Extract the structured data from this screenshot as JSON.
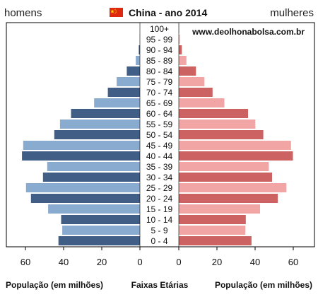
{
  "header": {
    "left_label": "homens",
    "right_label": "mulheres",
    "title": "China - ano 2014",
    "flag_icon": "china-flag-icon",
    "source": "www.deolhonabolsa.com.br"
  },
  "footer": {
    "left_label": "População (em milhões)",
    "center_label": "Faixas Etárias",
    "right_label": "População (em milhões)"
  },
  "chart_data": {
    "type": "bar",
    "orientation": "horizontal",
    "subtype": "population-pyramid",
    "title": "China - ano 2014",
    "categories": [
      "100+",
      "95 - 99",
      "90 - 94",
      "85 - 89",
      "80 - 84",
      "75 - 79",
      "70 - 74",
      "65 - 69",
      "60 - 64",
      "55 - 59",
      "50 - 54",
      "45 - 49",
      "40 - 44",
      "35 - 39",
      "30 - 34",
      "25 - 29",
      "20 - 24",
      "15 - 19",
      "10 - 14",
      "5 - 9",
      "0 - 4"
    ],
    "series": [
      {
        "name": "homens",
        "values": [
          0.0,
          0.1,
          0.6,
          2.2,
          6.9,
          12.2,
          16.8,
          24.0,
          36.1,
          41.9,
          44.9,
          61.2,
          61.8,
          48.6,
          50.8,
          59.7,
          57.1,
          48.1,
          41.3,
          40.7,
          42.7
        ],
        "colors": {
          "light": "#8aabd0",
          "dark": "#415f86"
        }
      },
      {
        "name": "mulheres",
        "values": [
          0.2,
          0.5,
          1.6,
          4.0,
          9.0,
          13.4,
          17.7,
          23.9,
          36.3,
          40.1,
          44.3,
          58.8,
          59.8,
          47.2,
          48.9,
          56.4,
          51.9,
          42.6,
          35.1,
          34.9,
          38.1
        ],
        "colors": {
          "light": "#f2a5a5",
          "dark": "#cc6262"
        }
      }
    ],
    "xlabel_left": "População (em milhões)",
    "xlabel_center": "Faixas Etárias",
    "xlabel_right": "População (em milhões)",
    "xlim": [
      0,
      70
    ],
    "xticks": [
      "60",
      "40",
      "20",
      "0",
      "0",
      "20",
      "40",
      "60"
    ],
    "grid": false,
    "legend": "top",
    "source": "www.deolhonabolsa.com.br"
  }
}
